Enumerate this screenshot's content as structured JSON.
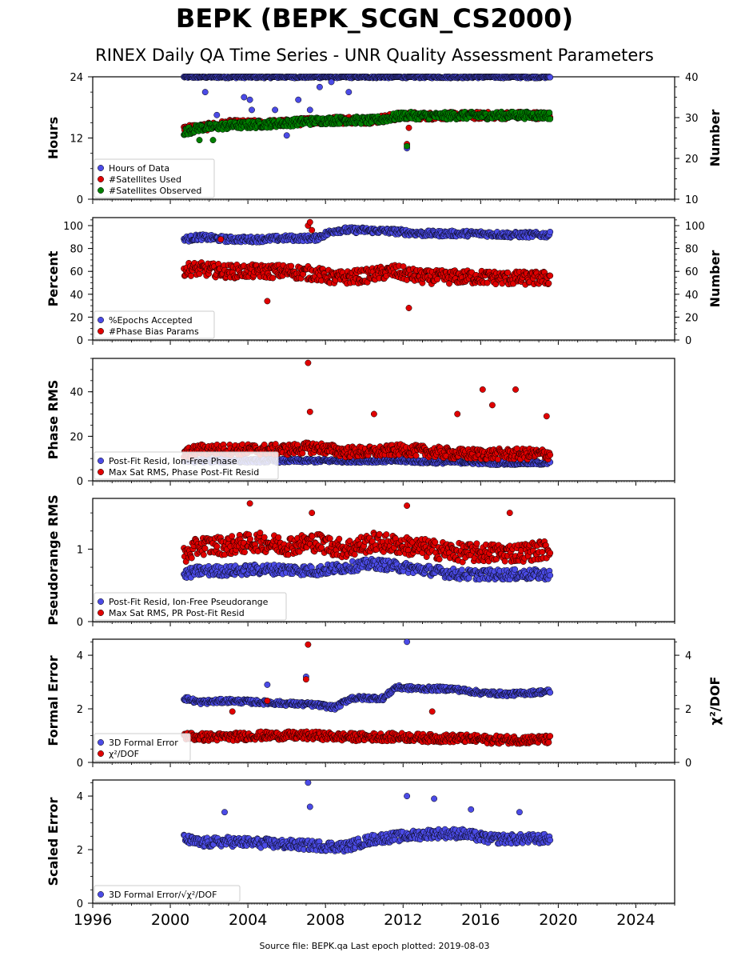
{
  "title": "BEPK (BEPK_SCGN_CS2000)",
  "subtitle": "RINEX Daily QA Time Series - UNR Quality Assessment Parameters",
  "footer": "Source file: BEPK.qa Last epoch plotted: 2019-08-03",
  "colors": {
    "blue": "#4b4be6",
    "red": "#e00000",
    "green": "#008000",
    "edge": "#000000"
  },
  "chart_data": [
    {
      "type": "scatter",
      "panel": "hours-numbers",
      "ylabel": "Hours",
      "ylabel_right": "Number",
      "ylim": [
        0,
        24
      ],
      "ylim_right": [
        10,
        40
      ],
      "yticks": [
        0,
        12,
        24
      ],
      "yticks_right": [
        10,
        20,
        30,
        40
      ],
      "legend_position": "lower-left",
      "series": [
        {
          "name": "Hours of Data",
          "color": "blue",
          "axis": "left",
          "x": [
            2000.7,
            2001.5,
            2003,
            2004.5,
            2006,
            2007.5,
            2009,
            2010.5,
            2012,
            2013.5,
            2015,
            2016.5,
            2018,
            2019.58
          ],
          "y": [
            24,
            24,
            24,
            24,
            24,
            24,
            24,
            24,
            24,
            24,
            24,
            24,
            24,
            24
          ],
          "outliers": [
            [
              2001.8,
              21
            ],
            [
              2002.4,
              16.5
            ],
            [
              2003.8,
              20
            ],
            [
              2004.1,
              19.5
            ],
            [
              2004.2,
              17.5
            ],
            [
              2005.4,
              17.5
            ],
            [
              2006.6,
              19.5
            ],
            [
              2007.2,
              17.5
            ],
            [
              2007.7,
              22
            ],
            [
              2008.3,
              23
            ],
            [
              2009.2,
              21
            ],
            [
              2012.2,
              10
            ],
            [
              2006.0,
              12.5
            ]
          ]
        },
        {
          "name": "#Satellites Used",
          "color": "red",
          "axis": "right",
          "x": [
            2000.7,
            2001.5,
            2003,
            2004.5,
            2006,
            2007.5,
            2009,
            2010.5,
            2012,
            2013.5,
            2015,
            2016.5,
            2018,
            2019.58
          ],
          "y": [
            27.5,
            27.5,
            28.5,
            28.5,
            28.7,
            29.3,
            29.4,
            29.4,
            30.5,
            30.4,
            30.5,
            30.5,
            30.6,
            30.5
          ],
          "outliers": [
            [
              2012.3,
              27.5
            ],
            [
              2012.2,
              23.5
            ]
          ]
        },
        {
          "name": "#Satellites Observed",
          "color": "green",
          "axis": "right",
          "x": [
            2000.7,
            2001.5,
            2003,
            2004.5,
            2006,
            2007.5,
            2009,
            2010.5,
            2012,
            2013.5,
            2015,
            2016.5,
            2018,
            2019.58
          ],
          "y": [
            26.5,
            27.5,
            28.0,
            28.3,
            28.7,
            29.2,
            29.4,
            29.3,
            30.5,
            30.4,
            30.5,
            30.5,
            30.6,
            30.5
          ],
          "outliers": [
            [
              2001.5,
              24.5
            ],
            [
              2002.2,
              24.5
            ],
            [
              2012.2,
              23.0
            ]
          ]
        }
      ]
    },
    {
      "type": "scatter",
      "panel": "percent-numbers",
      "ylabel": "Percent",
      "ylabel_right": "Number",
      "ylim": [
        0,
        107
      ],
      "ylim_right": [
        0,
        107
      ],
      "yticks": [
        0,
        20,
        40,
        60,
        80,
        100
      ],
      "yticks_right": [
        0,
        20,
        40,
        60,
        80,
        100
      ],
      "legend_position": "lower-left",
      "series": [
        {
          "name": "%Epochs Accepted",
          "color": "blue",
          "axis": "left",
          "x": [
            2000.7,
            2001.5,
            2003,
            2004.5,
            2006,
            2007.5,
            2008.5,
            2010,
            2011.5,
            2013,
            2014.5,
            2016,
            2017.5,
            2019.58
          ],
          "y": [
            88,
            90,
            88,
            88,
            89,
            89,
            96,
            96,
            95,
            93,
            93,
            93,
            92,
            92
          ],
          "outliers": []
        },
        {
          "name": "#Phase Bias Params",
          "color": "red",
          "axis": "right",
          "x": [
            2000.7,
            2001.5,
            2003,
            2004.5,
            2006,
            2007.5,
            2008.5,
            2010,
            2011.5,
            2013,
            2014.5,
            2016,
            2017.5,
            2019.58
          ],
          "y": [
            62,
            62,
            60,
            60,
            60,
            58,
            54,
            56,
            60,
            55,
            55,
            55,
            54,
            54
          ],
          "outliers": [
            [
              2002.6,
              88
            ],
            [
              2005.0,
              34
            ],
            [
              2007.1,
              100
            ],
            [
              2007.2,
              103
            ],
            [
              2007.3,
              96
            ],
            [
              2012.3,
              28
            ]
          ]
        }
      ]
    },
    {
      "type": "scatter",
      "panel": "phase-rms",
      "ylabel": "Phase RMS",
      "ylim": [
        0,
        55
      ],
      "yticks": [
        0,
        20,
        40
      ],
      "legend_position": "lower-left",
      "series": [
        {
          "name": "Post-Fit Resid, Ion-Free Phase",
          "color": "blue",
          "axis": "left",
          "x": [
            2000.7,
            2001.5,
            2003,
            2004.5,
            2006,
            2007.5,
            2009,
            2010.5,
            2012,
            2013.5,
            2015,
            2016.5,
            2018,
            2019.58
          ],
          "y": [
            9,
            9,
            9,
            9,
            9,
            9,
            9,
            9,
            9,
            8.5,
            8.5,
            8,
            8,
            8
          ],
          "outliers": []
        },
        {
          "name": "Max Sat RMS, Phase Post-Fit Resid",
          "color": "red",
          "axis": "left",
          "x": [
            2000.7,
            2001.5,
            2003,
            2004.5,
            2006,
            2007.5,
            2009,
            2010.5,
            2012,
            2013.5,
            2015,
            2016.5,
            2018,
            2019.58
          ],
          "y": [
            12,
            14,
            14,
            14,
            14,
            15,
            13,
            13,
            14,
            13,
            12,
            12,
            12,
            12
          ],
          "outliers": [
            [
              2007.1,
              53
            ],
            [
              2007.2,
              31
            ],
            [
              2010.5,
              30
            ],
            [
              2016.1,
              41
            ],
            [
              2017.8,
              41
            ],
            [
              2016.6,
              34
            ],
            [
              2019.4,
              29
            ],
            [
              2014.8,
              30
            ]
          ]
        }
      ]
    },
    {
      "type": "scatter",
      "panel": "pseudorange-rms",
      "ylabel": "Pseudorange RMS",
      "ylim": [
        0,
        1.7
      ],
      "yticks": [
        0,
        1
      ],
      "legend_position": "lower-left",
      "series": [
        {
          "name": "Post-Fit Resid, Ion-Free Pseudorange",
          "color": "blue",
          "axis": "left",
          "x": [
            2000.7,
            2001.5,
            2003,
            2004.5,
            2006,
            2007.5,
            2009,
            2010.5,
            2012,
            2013.5,
            2015,
            2016.5,
            2018,
            2019.58
          ],
          "y": [
            0.65,
            0.7,
            0.7,
            0.72,
            0.72,
            0.7,
            0.75,
            0.8,
            0.75,
            0.7,
            0.65,
            0.65,
            0.65,
            0.65
          ],
          "outliers": []
        },
        {
          "name": "Max Sat RMS, PR Post-Fit Resid",
          "color": "red",
          "axis": "left",
          "x": [
            2000.7,
            2001.5,
            2003,
            2004.5,
            2006,
            2007.5,
            2009,
            2010.5,
            2012,
            2013.5,
            2015,
            2016.5,
            2018,
            2019.58
          ],
          "y": [
            0.9,
            1.05,
            1.05,
            1.1,
            1.05,
            1.1,
            1.0,
            1.1,
            1.05,
            1.0,
            0.95,
            0.95,
            0.95,
            1.0
          ],
          "outliers": [
            [
              2004.1,
              1.63
            ],
            [
              2012.2,
              1.6
            ],
            [
              2007.3,
              1.5
            ],
            [
              2017.5,
              1.5
            ]
          ]
        }
      ]
    },
    {
      "type": "scatter",
      "panel": "formal-error",
      "ylabel": "Formal Error",
      "ylabel_right": "χ²/DOF",
      "ylim": [
        0,
        4.6
      ],
      "ylim_right": [
        0,
        4.6
      ],
      "yticks": [
        0,
        2,
        4
      ],
      "yticks_right": [
        0,
        2,
        4
      ],
      "legend_position": "lower-left",
      "series": [
        {
          "name": "3D Formal Error",
          "color": "blue",
          "axis": "left",
          "x": [
            2000.7,
            2001.5,
            2003,
            2004.5,
            2006,
            2007.5,
            2008.5,
            2009.3,
            2011,
            2011.6,
            2013,
            2014.5,
            2016,
            2017.5,
            2019.58
          ],
          "y": [
            2.4,
            2.25,
            2.3,
            2.25,
            2.2,
            2.15,
            2.05,
            2.4,
            2.4,
            2.8,
            2.75,
            2.75,
            2.6,
            2.55,
            2.65
          ],
          "outliers": [
            [
              2012.2,
              4.5
            ],
            [
              2005.0,
              2.9
            ],
            [
              2007.0,
              3.2
            ]
          ]
        },
        {
          "name": "χ²/DOF",
          "color": "red",
          "axis": "right",
          "x": [
            2000.7,
            2001.5,
            2003,
            2004.5,
            2006,
            2007.5,
            2009,
            2010.5,
            2012,
            2013.5,
            2015,
            2016.5,
            2018,
            2019.58
          ],
          "y": [
            1.0,
            0.95,
            0.95,
            1.0,
            1.0,
            1.0,
            0.95,
            0.95,
            0.95,
            0.9,
            0.9,
            0.85,
            0.85,
            0.85
          ],
          "outliers": [
            [
              2007.1,
              4.4
            ],
            [
              2007.0,
              3.1
            ],
            [
              2003.2,
              1.9
            ],
            [
              2013.5,
              1.9
            ],
            [
              2005.0,
              2.3
            ]
          ]
        }
      ]
    },
    {
      "type": "scatter",
      "panel": "scaled-error",
      "ylabel": "Scaled Error",
      "ylim": [
        0,
        4.6
      ],
      "yticks": [
        0,
        2,
        4
      ],
      "xlim": [
        1996,
        2026
      ],
      "xticks": [
        1996,
        2000,
        2004,
        2008,
        2012,
        2016,
        2020,
        2024
      ],
      "legend_position": "lower-left",
      "series": [
        {
          "name": "3D Formal Error/√χ²/DOF",
          "color": "blue",
          "axis": "left",
          "x": [
            2000.7,
            2001.5,
            2003,
            2004.5,
            2006,
            2007.5,
            2009,
            2010.5,
            2012,
            2013.5,
            2015,
            2016.5,
            2018,
            2019.58
          ],
          "y": [
            2.4,
            2.25,
            2.3,
            2.25,
            2.2,
            2.15,
            2.1,
            2.4,
            2.5,
            2.6,
            2.6,
            2.4,
            2.4,
            2.4
          ],
          "outliers": [
            [
              2007.1,
              4.5
            ],
            [
              2012.2,
              4.0
            ],
            [
              2013.6,
              3.9
            ],
            [
              2007.2,
              3.6
            ],
            [
              2002.8,
              3.4
            ],
            [
              2018.0,
              3.4
            ],
            [
              2015.5,
              3.5
            ]
          ]
        }
      ]
    }
  ]
}
